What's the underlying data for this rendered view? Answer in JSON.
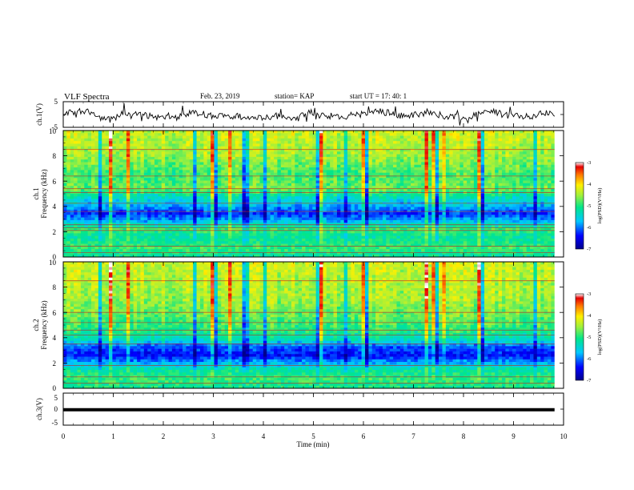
{
  "header": {
    "title": "VLF Spectra",
    "date": "Feb. 23, 2019",
    "station": "station= KAP",
    "start": "start  UT =   17: 40: 1"
  },
  "chart_data": {
    "type": "heatmap",
    "title": "VLF Spectra",
    "xlabel": "Time (min)",
    "xlim": [
      0,
      10
    ],
    "x_ticks": [
      0,
      1,
      2,
      3,
      4,
      5,
      6,
      7,
      8,
      9,
      10
    ],
    "x_tick_labels": [
      "0",
      "1",
      "2",
      "3",
      "4",
      "5",
      "6",
      "7",
      "8",
      "9",
      "10"
    ],
    "data_end_min": 9.82,
    "panels": [
      {
        "kind": "waveform",
        "ylabel": "ch.1(V)",
        "ylim": [
          -5,
          5
        ],
        "y_tick_labels": [
          "5",
          "-5"
        ],
        "mean_v": -0.3,
        "amplitude_v": 2.5
      },
      {
        "kind": "spectrogram",
        "ylabel_top": "ch.1",
        "ylabel": "Frequency (kHz)",
        "ylim": [
          0,
          10
        ],
        "y_ticks": [
          0,
          2,
          4,
          6,
          8,
          10
        ],
        "y_tick_labels": [
          "0",
          "2",
          "4",
          "6",
          "8",
          "10"
        ],
        "colorbar": {
          "label": "log(PSD)(V²/Hz)",
          "range": [
            -7,
            -3
          ],
          "ticks": [
            -3,
            -4,
            -5,
            -6,
            -7
          ],
          "tick_labels": [
            "-3",
            "-4",
            "-5",
            "-6",
            "-7"
          ]
        },
        "band_profile": [
          {
            "f_khz": 0.0,
            "level": -5.2
          },
          {
            "f_khz": 0.7,
            "level": -4.9
          },
          {
            "f_khz": 1.6,
            "level": -5.2
          },
          {
            "f_khz": 2.2,
            "level": -4.9
          },
          {
            "f_khz": 2.8,
            "level": -5.7
          },
          {
            "f_khz": 3.4,
            "level": -6.3
          },
          {
            "f_khz": 4.0,
            "level": -5.8
          },
          {
            "f_khz": 4.8,
            "level": -5.3
          },
          {
            "f_khz": 5.4,
            "level": -4.7
          },
          {
            "f_khz": 6.5,
            "level": -4.9
          },
          {
            "f_khz": 8.0,
            "level": -4.5
          },
          {
            "f_khz": 10.0,
            "level": -4.3
          }
        ],
        "lines_khz": [
          0.35,
          0.85,
          2.1,
          2.3,
          2.55,
          3.6,
          4.25,
          5.1,
          5.4,
          6.4,
          8.5
        ]
      },
      {
        "kind": "spectrogram",
        "ylabel_top": "ch.2",
        "ylabel": "Frequency (kHz)",
        "ylim": [
          0,
          10
        ],
        "y_ticks": [
          0,
          2,
          4,
          6,
          8,
          10
        ],
        "y_tick_labels": [
          "0",
          "2",
          "4",
          "6",
          "8",
          "10"
        ],
        "colorbar": {
          "label": "log(PSD)(V²/Hz)",
          "range": [
            -7,
            -3
          ],
          "ticks": [
            -3,
            -4,
            -5,
            -6,
            -7
          ],
          "tick_labels": [
            "-3",
            "-4",
            "-5",
            "-6",
            "-7"
          ]
        },
        "band_profile": [
          {
            "f_khz": 0.0,
            "level": -5.1
          },
          {
            "f_khz": 0.7,
            "level": -4.9
          },
          {
            "f_khz": 1.5,
            "level": -5.2
          },
          {
            "f_khz": 2.0,
            "level": -5.8
          },
          {
            "f_khz": 2.6,
            "level": -6.4
          },
          {
            "f_khz": 3.3,
            "level": -6.1
          },
          {
            "f_khz": 3.8,
            "level": -5.4
          },
          {
            "f_khz": 4.5,
            "level": -5.0
          },
          {
            "f_khz": 5.5,
            "level": -4.8
          },
          {
            "f_khz": 7.0,
            "level": -4.5
          },
          {
            "f_khz": 10.0,
            "level": -4.3
          }
        ],
        "lines_khz": [
          0.4,
          0.9,
          1.8,
          3.5,
          4.2,
          4.6,
          5.2,
          6.0,
          8.5
        ]
      },
      {
        "kind": "waveform",
        "ylabel": "ch.3(V)",
        "ylim": [
          -5,
          5
        ],
        "y_tick_labels": [
          "5",
          "0",
          "-5"
        ],
        "mean_v": -0.2,
        "amplitude_v": 0.0
      }
    ]
  },
  "colors": {
    "axis": "#000000",
    "trace": "#000000"
  }
}
